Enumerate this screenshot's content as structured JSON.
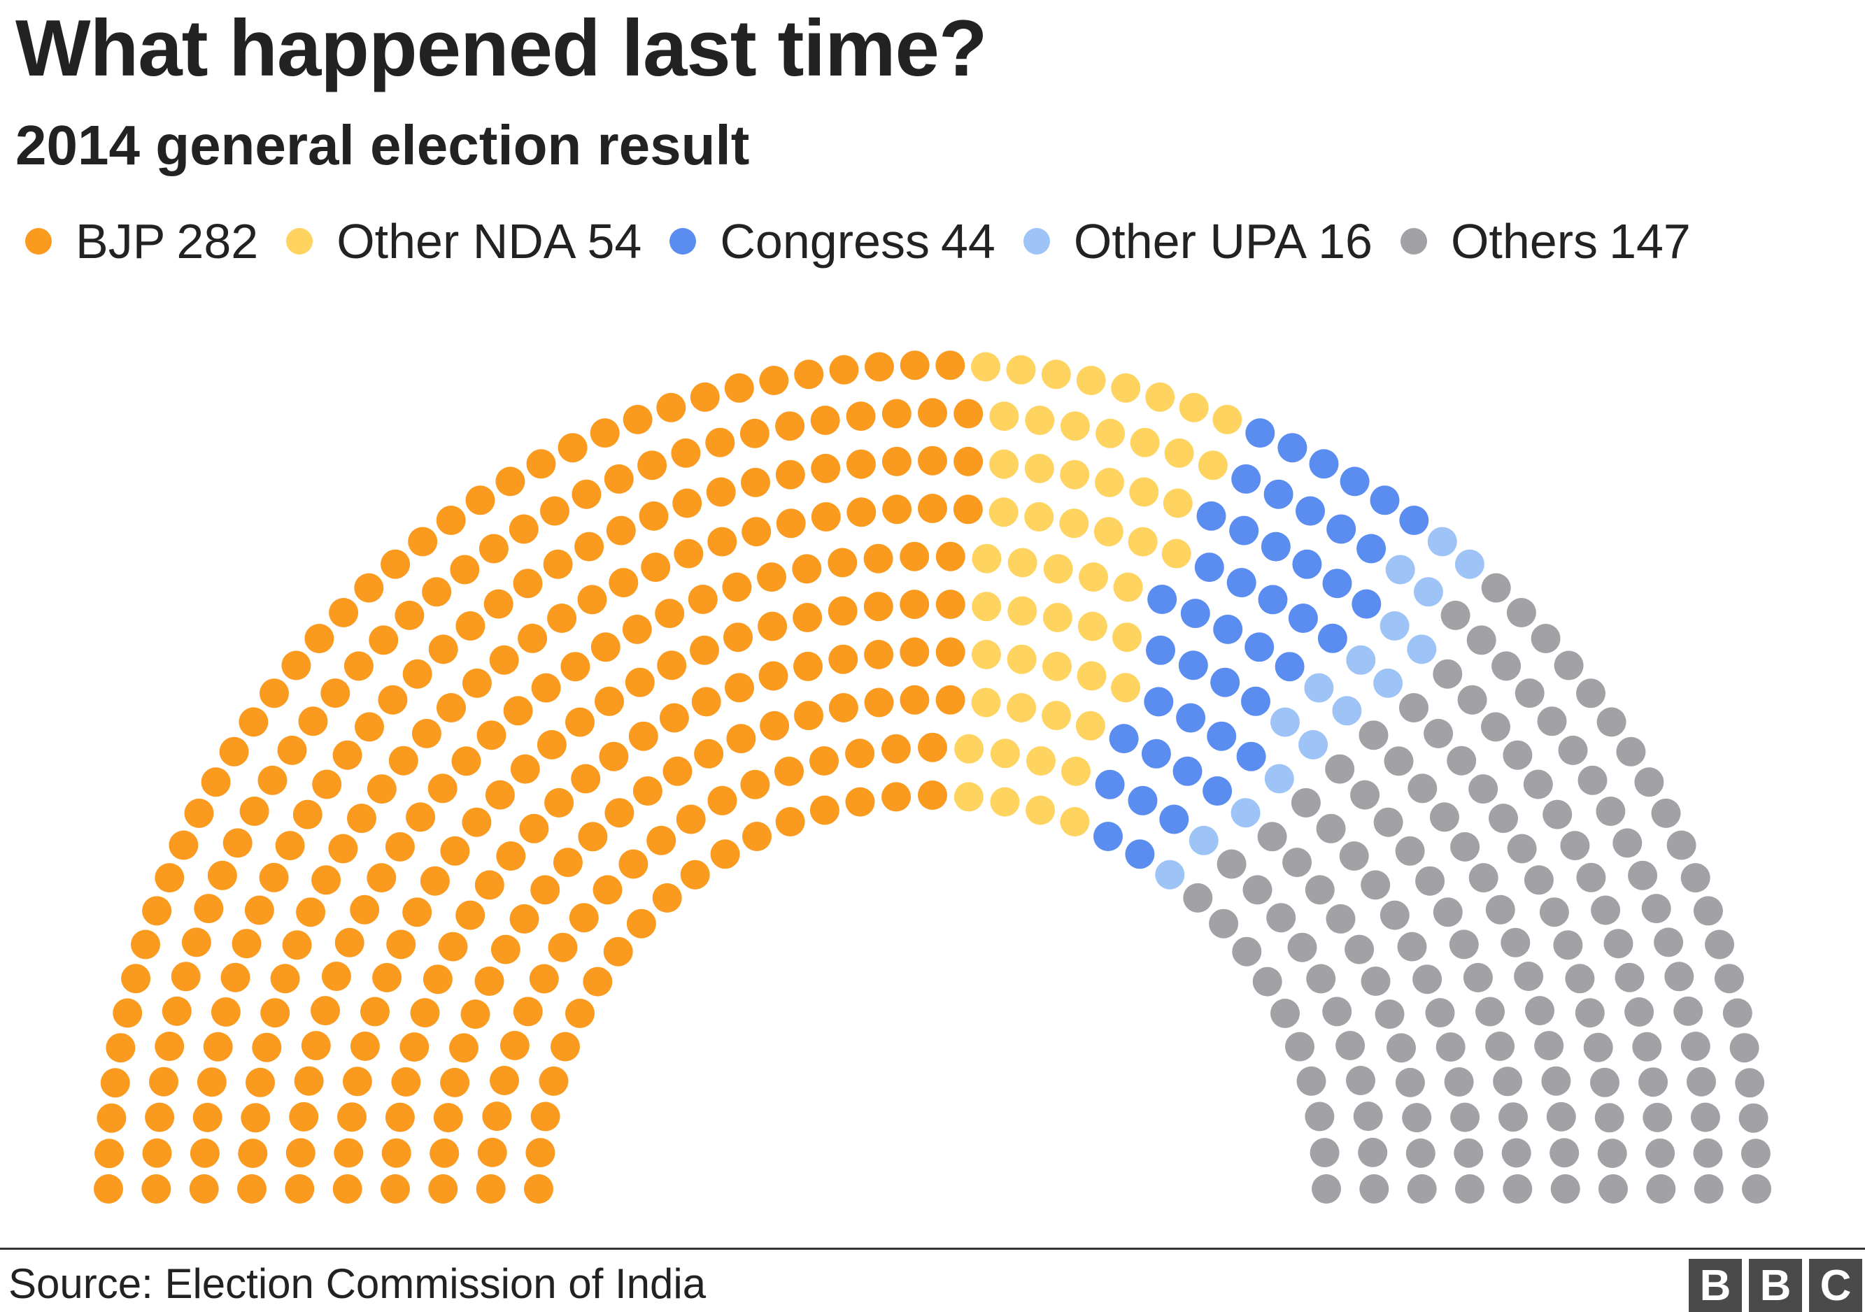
{
  "header": {
    "title": "What happened last time?",
    "subtitle": "2014 general election result"
  },
  "chart_data": {
    "type": "parliament",
    "total_seats": 543,
    "rows": 10,
    "series": [
      {
        "name": "BJP",
        "label": "282",
        "value": 282,
        "color": "#fa9a1e"
      },
      {
        "name": "Other NDA",
        "label": "54",
        "value": 54,
        "color": "#ffd35f"
      },
      {
        "name": "Congress",
        "label": "44",
        "value": 44,
        "color": "#5b8cf0"
      },
      {
        "name": "Other UPA",
        "label": "16",
        "value": 16,
        "color": "#9ec3f7"
      },
      {
        "name": "Others",
        "label": "147",
        "value": 147,
        "color": "#a1a1a6"
      }
    ],
    "legend_position": "top-left"
  },
  "footer": {
    "source": "Source: Election Commission of India",
    "logo": [
      "B",
      "B",
      "C"
    ]
  }
}
